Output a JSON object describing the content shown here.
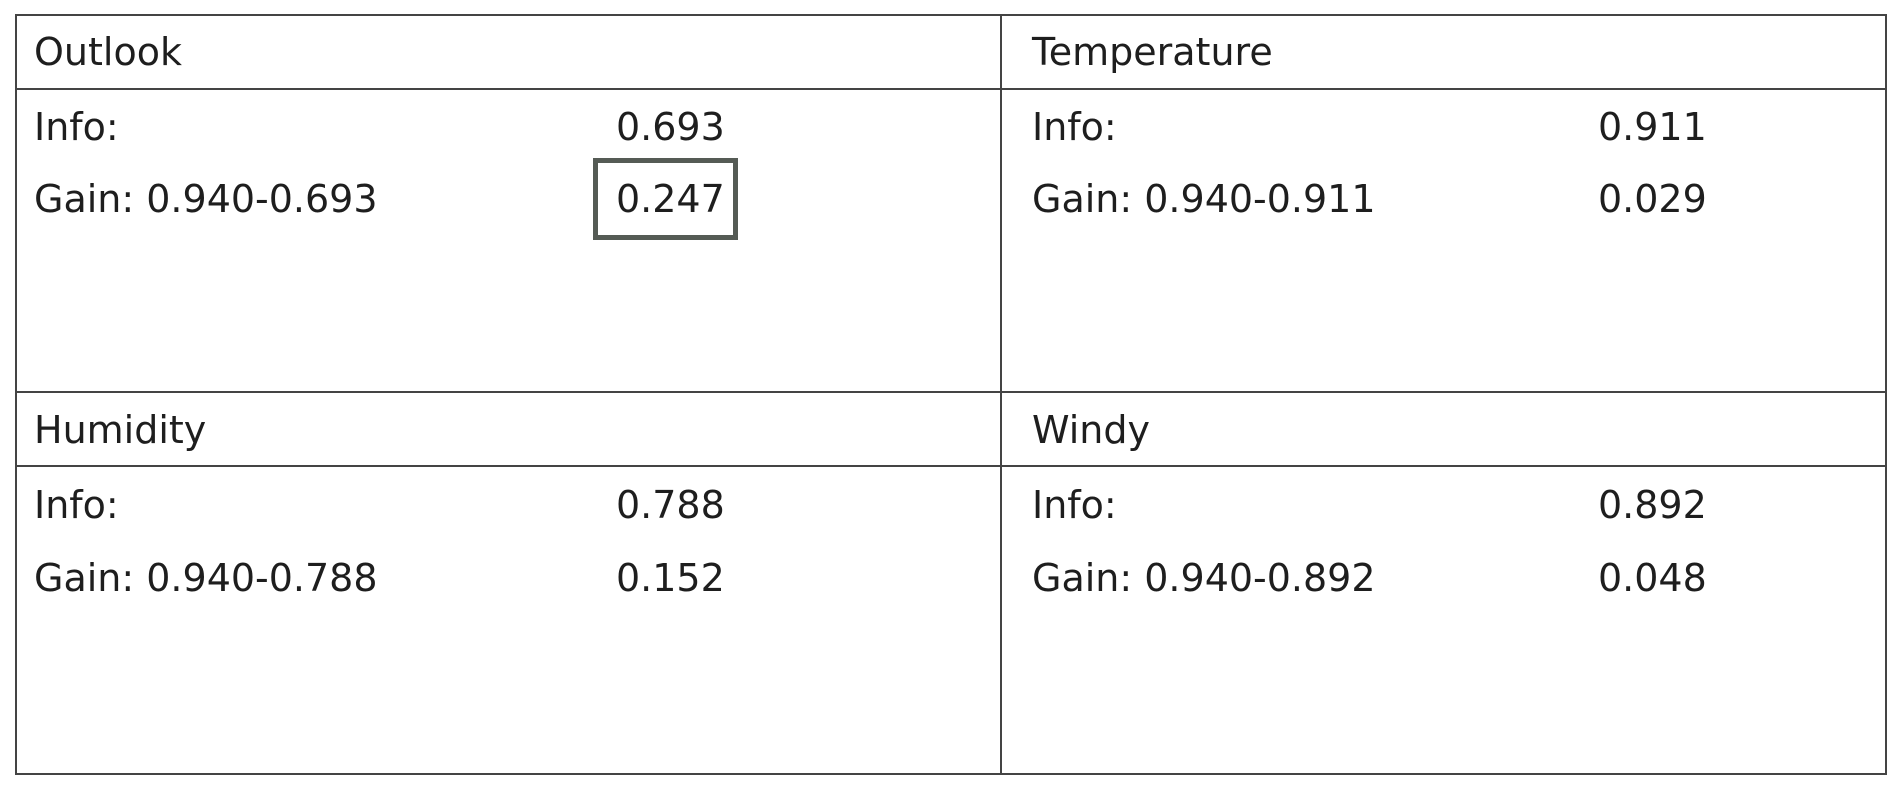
{
  "panels": [
    {
      "title": "Outlook",
      "info_label": "Info:",
      "info_value": "0.693",
      "gain_label": "Gain: 0.940-0.693",
      "gain_value": "0.247",
      "gain_value_highlighted": true
    },
    {
      "title": "Temperature",
      "info_label": "Info:",
      "info_value": "0.911",
      "gain_label": "Gain: 0.940-0.911",
      "gain_value": "0.029",
      "gain_value_highlighted": false
    },
    {
      "title": "Humidity",
      "info_label": "Info:",
      "info_value": "0.788",
      "gain_label": "Gain: 0.940-0.788",
      "gain_value": "0.152",
      "gain_value_highlighted": false
    },
    {
      "title": "Windy",
      "info_label": "Info:",
      "info_value": "0.892",
      "gain_label": "Gain: 0.940-0.892",
      "gain_value": "0.048",
      "gain_value_highlighted": false
    }
  ]
}
